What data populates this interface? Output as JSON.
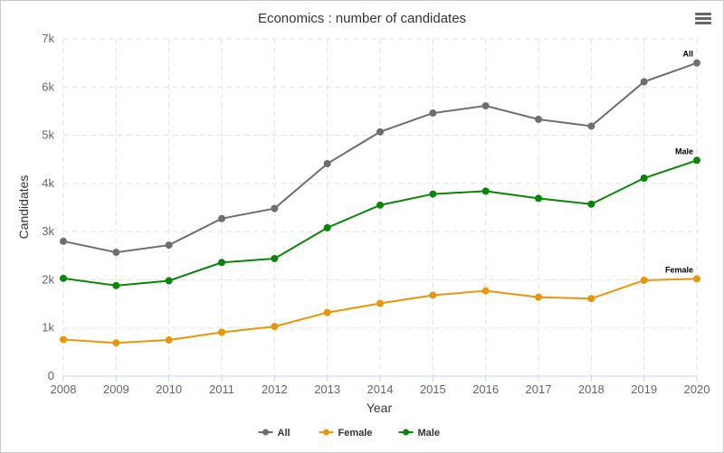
{
  "chart_data": {
    "type": "line",
    "title": "Economics : number of candidates",
    "xlabel": "Year",
    "ylabel": "Candidates",
    "x": [
      "2008",
      "2009",
      "2010",
      "2011",
      "2012",
      "2013",
      "2014",
      "2015",
      "2016",
      "2017",
      "2018",
      "2019",
      "2020"
    ],
    "ylim": [
      0,
      7000
    ],
    "yticks": [
      0,
      1000,
      2000,
      3000,
      4000,
      5000,
      6000,
      7000
    ],
    "ytick_labels": [
      "0",
      "1k",
      "2k",
      "3k",
      "4k",
      "5k",
      "6k",
      "7k"
    ],
    "grid": true,
    "legend_position": "bottom-center",
    "series": [
      {
        "name": "All",
        "color": "#6e6e6e",
        "end_label": "All",
        "values": [
          2800,
          2570,
          2720,
          3270,
          3480,
          4410,
          5070,
          5460,
          5610,
          5330,
          5190,
          6110,
          6500
        ]
      },
      {
        "name": "Female",
        "color": "#e8960c",
        "end_label": "Female",
        "values": [
          760,
          690,
          750,
          910,
          1030,
          1320,
          1510,
          1680,
          1770,
          1640,
          1610,
          1990,
          2020
        ]
      },
      {
        "name": "Male",
        "color": "#0a850a",
        "end_label": "Male",
        "values": [
          2030,
          1880,
          1980,
          2360,
          2440,
          3080,
          3550,
          3780,
          3840,
          3690,
          3570,
          4110,
          4480
        ]
      }
    ]
  },
  "toolbar": {
    "menu_icon": "hamburger-menu-icon"
  }
}
